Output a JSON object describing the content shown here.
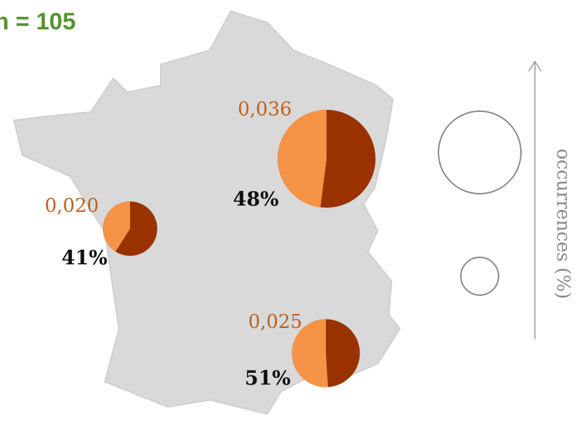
{
  "title": "n = 105",
  "legend": {
    "label": "occurrences (%)"
  },
  "regions": [
    {
      "size": 0.036,
      "size_label": "0,036",
      "share": 48,
      "share_label": "48%"
    },
    {
      "size": 0.02,
      "size_label": "0,020",
      "share": 41,
      "share_label": "41%"
    },
    {
      "size": 0.025,
      "size_label": "0,025",
      "share": 51,
      "share_label": "51%"
    }
  ]
}
